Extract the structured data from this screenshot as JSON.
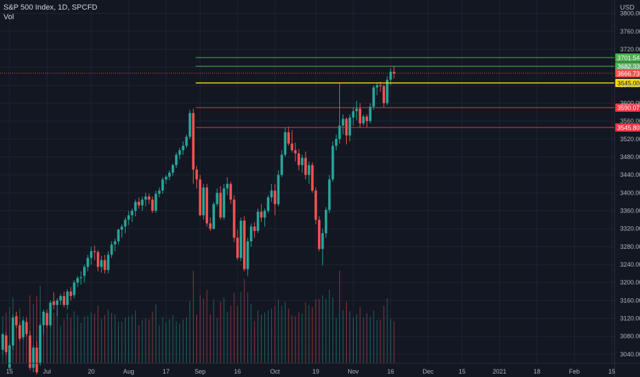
{
  "header": {
    "symbol": "S&P 500 Index, 1D, SPCFD",
    "volume_label": "Vol"
  },
  "axis": {
    "currency": "USD"
  },
  "colors": {
    "background": "#131722",
    "grid": "#1f2430",
    "up": "#26a69a",
    "down": "#ef5350",
    "axis_text": "#b2b5be",
    "green_line": "#4caf50",
    "red_line": "#f23645",
    "yellow_line": "#f5d90a"
  },
  "chart_data": {
    "type": "candlestick",
    "title": "S&P 500 Index, 1D, SPCFD",
    "y_axis": {
      "label": "USD",
      "range": [
        3020,
        3830
      ],
      "ticks": [
        3040,
        3080,
        3120,
        3160,
        3200,
        3240,
        3280,
        3320,
        3360,
        3400,
        3440,
        3480,
        3520,
        3560,
        3600,
        3640,
        3680,
        3720,
        3760,
        3800
      ]
    },
    "x_axis": {
      "ticks": [
        {
          "label": "15",
          "index": 2
        },
        {
          "label": "Jul",
          "index": 13
        },
        {
          "label": "20",
          "index": 26
        },
        {
          "label": "Aug",
          "index": 37
        },
        {
          "label": "17",
          "index": 48
        },
        {
          "label": "Sep",
          "index": 58
        },
        {
          "label": "16",
          "index": 69
        },
        {
          "label": "Oct",
          "index": 80
        },
        {
          "label": "19",
          "index": 92
        },
        {
          "label": "Nov",
          "index": 103
        },
        {
          "label": "16",
          "index": 114
        },
        {
          "label": "Dec",
          "index": 125
        },
        {
          "label": "15",
          "index": 135
        },
        {
          "label": "2021",
          "index": 146
        },
        {
          "label": "18",
          "index": 157
        },
        {
          "label": "Feb",
          "index": 168
        },
        {
          "label": "15",
          "index": 179
        }
      ]
    },
    "candles": [
      [
        3050,
        3088,
        3040,
        3085
      ],
      [
        3082,
        3090,
        3038,
        3045
      ],
      [
        3010,
        3065,
        3005,
        3060
      ],
      [
        3060,
        3128,
        3050,
        3122
      ],
      [
        3125,
        3135,
        3098,
        3105
      ],
      [
        3105,
        3112,
        3070,
        3075
      ],
      [
        3078,
        3118,
        3072,
        3115
      ],
      [
        3112,
        3120,
        3080,
        3085
      ],
      [
        3082,
        3092,
        3005,
        3010
      ],
      [
        3010,
        3060,
        3000,
        3055
      ],
      [
        3055,
        3070,
        2995,
        3000
      ],
      [
        3020,
        3110,
        3015,
        3105
      ],
      [
        3105,
        3140,
        3085,
        3135
      ],
      [
        3132,
        3140,
        3100,
        3105
      ],
      [
        3105,
        3160,
        3100,
        3155
      ],
      [
        3158,
        3178,
        3140,
        3150
      ],
      [
        3150,
        3165,
        3125,
        3160
      ],
      [
        3160,
        3175,
        3150,
        3170
      ],
      [
        3170,
        3180,
        3145,
        3150
      ],
      [
        3150,
        3185,
        3140,
        3180
      ],
      [
        3180,
        3190,
        3160,
        3170
      ],
      [
        3172,
        3205,
        3165,
        3200
      ],
      [
        3200,
        3215,
        3190,
        3210
      ],
      [
        3210,
        3225,
        3195,
        3212
      ],
      [
        3215,
        3240,
        3200,
        3235
      ],
      [
        3235,
        3262,
        3225,
        3255
      ],
      [
        3255,
        3280,
        3240,
        3270
      ],
      [
        3270,
        3282,
        3250,
        3268
      ],
      [
        3268,
        3272,
        3225,
        3235
      ],
      [
        3235,
        3260,
        3222,
        3250
      ],
      [
        3250,
        3262,
        3220,
        3228
      ],
      [
        3228,
        3270,
        3220,
        3262
      ],
      [
        3262,
        3292,
        3255,
        3285
      ],
      [
        3285,
        3298,
        3270,
        3292
      ],
      [
        3292,
        3320,
        3285,
        3318
      ],
      [
        3318,
        3330,
        3300,
        3325
      ],
      [
        3325,
        3345,
        3310,
        3340
      ],
      [
        3340,
        3360,
        3328,
        3350
      ],
      [
        3350,
        3365,
        3335,
        3360
      ],
      [
        3360,
        3385,
        3348,
        3380
      ],
      [
        3380,
        3390,
        3365,
        3372
      ],
      [
        3372,
        3392,
        3360,
        3385
      ],
      [
        3385,
        3400,
        3370,
        3392
      ],
      [
        3392,
        3398,
        3375,
        3385
      ],
      [
        3385,
        3392,
        3355,
        3360
      ],
      [
        3360,
        3405,
        3355,
        3398
      ],
      [
        3398,
        3412,
        3390,
        3405
      ],
      [
        3405,
        3435,
        3398,
        3430
      ],
      [
        3430,
        3440,
        3420,
        3436
      ],
      [
        3436,
        3450,
        3428,
        3445
      ],
      [
        3445,
        3465,
        3438,
        3462
      ],
      [
        3462,
        3490,
        3455,
        3485
      ],
      [
        3485,
        3500,
        3475,
        3495
      ],
      [
        3495,
        3515,
        3485,
        3505
      ],
      [
        3505,
        3530,
        3500,
        3525
      ],
      [
        3525,
        3585,
        3520,
        3578
      ],
      [
        3578,
        3588,
        3420,
        3452
      ],
      [
        3452,
        3460,
        3410,
        3430
      ],
      [
        3430,
        3440,
        3348,
        3350
      ],
      [
        3350,
        3420,
        3340,
        3412
      ],
      [
        3412,
        3420,
        3325,
        3332
      ],
      [
        3332,
        3345,
        3315,
        3320
      ],
      [
        3320,
        3380,
        3318,
        3375
      ],
      [
        3375,
        3410,
        3370,
        3400
      ],
      [
        3400,
        3415,
        3340,
        3345
      ],
      [
        3345,
        3420,
        3340,
        3410
      ],
      [
        3410,
        3435,
        3395,
        3420
      ],
      [
        3420,
        3425,
        3375,
        3385
      ],
      [
        3385,
        3395,
        3290,
        3300
      ],
      [
        3300,
        3318,
        3250,
        3255
      ],
      [
        3255,
        3345,
        3248,
        3338
      ],
      [
        3338,
        3348,
        3225,
        3230
      ],
      [
        3230,
        3300,
        3215,
        3292
      ],
      [
        3292,
        3332,
        3280,
        3325
      ],
      [
        3325,
        3335,
        3300,
        3315
      ],
      [
        3315,
        3365,
        3310,
        3358
      ],
      [
        3358,
        3375,
        3335,
        3345
      ],
      [
        3345,
        3365,
        3325,
        3360
      ],
      [
        3360,
        3395,
        3355,
        3390
      ],
      [
        3390,
        3420,
        3380,
        3405
      ],
      [
        3405,
        3420,
        3350,
        3375
      ],
      [
        3375,
        3450,
        3370,
        3440
      ],
      [
        3440,
        3495,
        3435,
        3485
      ],
      [
        3485,
        3545,
        3480,
        3535
      ],
      [
        3535,
        3548,
        3505,
        3510
      ],
      [
        3510,
        3540,
        3490,
        3495
      ],
      [
        3495,
        3512,
        3470,
        3488
      ],
      [
        3488,
        3498,
        3450,
        3462
      ],
      [
        3462,
        3485,
        3445,
        3478
      ],
      [
        3478,
        3492,
        3430,
        3440
      ],
      [
        3440,
        3470,
        3420,
        3462
      ],
      [
        3462,
        3468,
        3400,
        3405
      ],
      [
        3405,
        3412,
        3330,
        3340
      ],
      [
        3340,
        3348,
        3270,
        3275
      ],
      [
        3275,
        3320,
        3238,
        3310
      ],
      [
        3310,
        3368,
        3300,
        3362
      ],
      [
        3362,
        3440,
        3355,
        3430
      ],
      [
        3430,
        3515,
        3425,
        3505
      ],
      [
        3505,
        3530,
        3495,
        3520
      ],
      [
        3520,
        3645,
        3510,
        3550
      ],
      [
        3550,
        3575,
        3530,
        3565
      ],
      [
        3565,
        3568,
        3508,
        3528
      ],
      [
        3528,
        3575,
        3515,
        3568
      ],
      [
        3568,
        3590,
        3550,
        3582
      ],
      [
        3582,
        3605,
        3562,
        3588
      ],
      [
        3588,
        3600,
        3545,
        3555
      ],
      [
        3555,
        3575,
        3550,
        3570
      ],
      [
        3570,
        3575,
        3545,
        3560
      ],
      [
        3560,
        3600,
        3555,
        3592
      ],
      [
        3592,
        3640,
        3585,
        3635
      ],
      [
        3635,
        3645,
        3618,
        3640
      ],
      [
        3640,
        3648,
        3625,
        3638
      ],
      [
        3638,
        3642,
        3590,
        3600
      ],
      [
        3600,
        3660,
        3595,
        3652
      ],
      [
        3652,
        3678,
        3640,
        3670
      ],
      [
        3670,
        3682,
        3655,
        3666
      ]
    ],
    "volume_note": "volume bars shown at bottom, unlabeled",
    "horizontal_levels": [
      {
        "value": "3701.54",
        "color": "#4caf50"
      },
      {
        "value": "3682.33",
        "color": "#4caf50"
      },
      {
        "value": "3666.73",
        "color": "#ef5350",
        "style": "dotted",
        "note": "last price"
      },
      {
        "value": "3645.00",
        "color": "#f5d90a"
      },
      {
        "value": "3590.07",
        "color": "#f23645"
      },
      {
        "value": "3545.80",
        "color": "#f23645"
      }
    ]
  }
}
